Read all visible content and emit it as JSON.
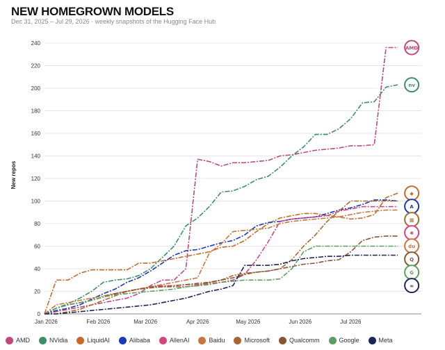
{
  "header": {
    "title": "NEW HOMEGROWN MODELS",
    "subtitle": "Dec 31, 2025 – Jul 29, 2026 · weekly snapshots of the Hugging Face Hub"
  },
  "chart_data": {
    "type": "line",
    "title": "NEW HOMEGROWN MODELS",
    "subtitle": "Dec 31, 2025 – Jul 29, 2026 · weekly snapshots of the Hugging Face Hub",
    "xlabel": "",
    "ylabel": "New repos",
    "ylim": [
      0,
      240
    ],
    "yticks": [
      0,
      20,
      40,
      60,
      80,
      100,
      120,
      140,
      160,
      180,
      200,
      220,
      240
    ],
    "xlim": [
      "2025-12-31",
      "2026-08-12"
    ],
    "xticks": [
      {
        "date": "2026-01-01",
        "label": "Jan 2026"
      },
      {
        "date": "2026-02-01",
        "label": "Feb 2026"
      },
      {
        "date": "2026-03-01",
        "label": "Mar 2026"
      },
      {
        "date": "2026-04-01",
        "label": "Apr 2026"
      },
      {
        "date": "2026-05-01",
        "label": "May 2026"
      },
      {
        "date": "2026-06-01",
        "label": "Jun 2026"
      },
      {
        "date": "2026-07-01",
        "label": "Jul 2026"
      }
    ],
    "grid": "horizontal",
    "legend_position": "bottom",
    "x": [
      "2025-12-31",
      "2026-01-07",
      "2026-01-14",
      "2026-01-21",
      "2026-01-28",
      "2026-02-04",
      "2026-02-11",
      "2026-02-18",
      "2026-02-25",
      "2026-03-04",
      "2026-03-11",
      "2026-03-18",
      "2026-03-25",
      "2026-04-01",
      "2026-04-08",
      "2026-04-15",
      "2026-04-22",
      "2026-04-29",
      "2026-05-06",
      "2026-05-13",
      "2026-05-20",
      "2026-05-27",
      "2026-06-03",
      "2026-06-10",
      "2026-06-17",
      "2026-06-24",
      "2026-07-01",
      "2026-07-08",
      "2026-07-15",
      "2026-07-22",
      "2026-07-29"
    ],
    "series": [
      {
        "name": "AMD",
        "color": "#c2477a",
        "icon": "AMD",
        "values": [
          0,
          2,
          4,
          6,
          8,
          10,
          12,
          14,
          18,
          25,
          30,
          30,
          40,
          137,
          135,
          131,
          134,
          134,
          135,
          136,
          140,
          141,
          143,
          145,
          146,
          147,
          149,
          149,
          150,
          236,
          236
        ]
      },
      {
        "name": "NVidia",
        "color": "#3e8e64",
        "icon": "NVIDIA",
        "values": [
          0,
          5,
          9,
          14,
          20,
          28,
          30,
          31,
          34,
          40,
          50,
          60,
          78,
          85,
          95,
          108,
          109,
          113,
          119,
          122,
          130,
          140,
          148,
          159,
          159,
          164,
          173,
          187,
          188,
          201,
          203
        ]
      },
      {
        "name": "LiquidAI",
        "color": "#c8692a",
        "icon": "liquid",
        "values": [
          0,
          30,
          30,
          36,
          39,
          39,
          39,
          39,
          45,
          45,
          47,
          49,
          51,
          53,
          55,
          59,
          60,
          65,
          73,
          80,
          85,
          87,
          89,
          89,
          87,
          86,
          84,
          85,
          88,
          103,
          107
        ]
      },
      {
        "name": "Alibaba",
        "color": "#1a38b8",
        "icon": "alibaba",
        "values": [
          0,
          3,
          5,
          8,
          13,
          18,
          22,
          28,
          32,
          38,
          45,
          52,
          56,
          57,
          60,
          63,
          65,
          70,
          78,
          81,
          82,
          84,
          85,
          86,
          89,
          92,
          94,
          97,
          101,
          101,
          100
        ]
      },
      {
        "name": "AllenAI",
        "color": "#d2457f",
        "icon": "allenai",
        "values": [
          0,
          5,
          8,
          10,
          12,
          15,
          18,
          20,
          22,
          24,
          25,
          25,
          26,
          26,
          27,
          28,
          30,
          35,
          48,
          64,
          82,
          84,
          85,
          86,
          87,
          91,
          93,
          95,
          95,
          95,
          95
        ]
      },
      {
        "name": "Baidu",
        "color": "#c97540",
        "icon": "du",
        "values": [
          0,
          8,
          10,
          12,
          14,
          16,
          18,
          20,
          22,
          24,
          26,
          28,
          30,
          32,
          54,
          62,
          73,
          74,
          75,
          76,
          80,
          82,
          83,
          84,
          85,
          86,
          88,
          90,
          91,
          92,
          92
        ]
      },
      {
        "name": "Microsoft",
        "color": "#a8682f",
        "icon": "microsoft",
        "values": [
          0,
          0,
          2,
          4,
          8,
          12,
          16,
          20,
          22,
          24,
          24,
          24,
          24,
          25,
          28,
          30,
          34,
          36,
          37,
          38,
          40,
          48,
          60,
          70,
          82,
          91,
          100,
          100,
          100,
          100,
          100
        ]
      },
      {
        "name": "Qualcomm",
        "color": "#8a5535",
        "icon": "qualcomm",
        "values": [
          0,
          5,
          8,
          10,
          12,
          15,
          18,
          20,
          22,
          23,
          24,
          25,
          26,
          27,
          28,
          30,
          32,
          35,
          37,
          38,
          40,
          42,
          44,
          45,
          47,
          48,
          55,
          65,
          68,
          69,
          69
        ]
      },
      {
        "name": "Google",
        "color": "#5a9e62",
        "icon": "google",
        "values": [
          0,
          5,
          8,
          10,
          12,
          15,
          17,
          18,
          19,
          20,
          21,
          22,
          24,
          25,
          26,
          28,
          29,
          30,
          30,
          30,
          31,
          40,
          55,
          60,
          60,
          60,
          60,
          60,
          60,
          60,
          60
        ]
      },
      {
        "name": "Meta",
        "color": "#1f2458",
        "icon": "meta",
        "values": [
          0,
          0,
          1,
          2,
          3,
          4,
          5,
          6,
          7,
          8,
          10,
          12,
          14,
          17,
          20,
          22,
          25,
          43,
          43,
          43,
          44,
          47,
          49,
          50,
          51,
          51,
          52,
          52,
          52,
          52,
          52
        ]
      }
    ]
  },
  "legend": {
    "items": [
      {
        "label": "AMD",
        "color": "#c2477a"
      },
      {
        "label": "NVidia",
        "color": "#3e8e64"
      },
      {
        "label": "LiquidAI",
        "color": "#c8692a"
      },
      {
        "label": "Alibaba",
        "color": "#1a38b8"
      },
      {
        "label": "AllenAI",
        "color": "#d2457f"
      },
      {
        "label": "Baidu",
        "color": "#c97540"
      },
      {
        "label": "Microsoft",
        "color": "#a8682f"
      },
      {
        "label": "Qualcomm",
        "color": "#8a5535"
      },
      {
        "label": "Google",
        "color": "#5a9e62"
      },
      {
        "label": "Meta",
        "color": "#1f2458"
      }
    ]
  }
}
